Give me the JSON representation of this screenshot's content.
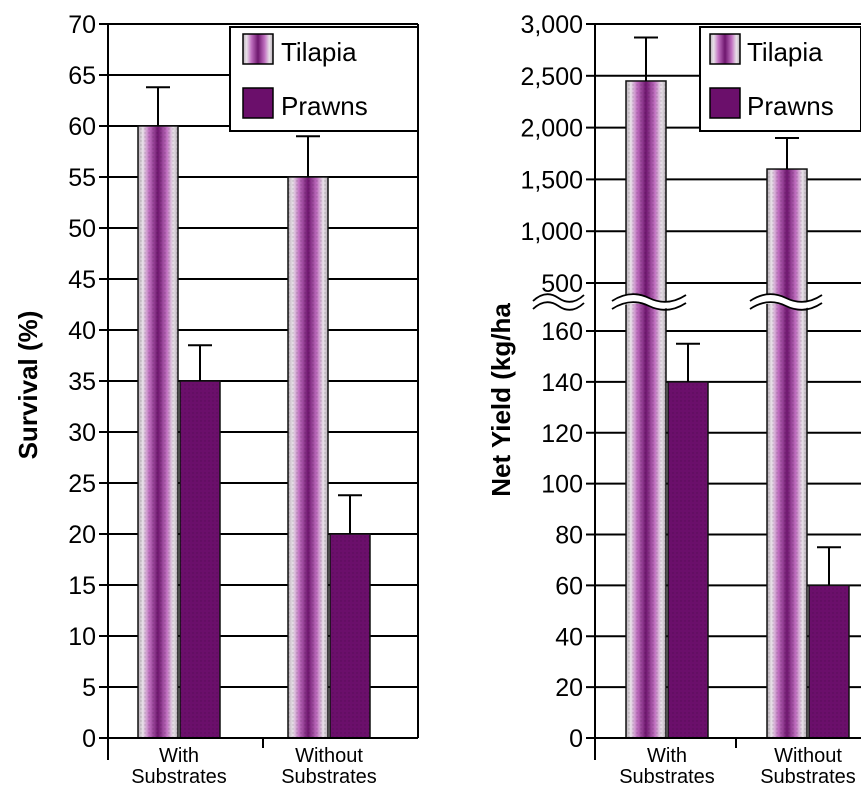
{
  "chart_data": [
    {
      "type": "bar",
      "categories": [
        "With Substrates",
        "Without Substrates"
      ],
      "category_lines": [
        [
          "With",
          "Substrates"
        ],
        [
          "Without",
          "Substrates"
        ]
      ],
      "series": [
        {
          "name": "Tilapia",
          "values": [
            60,
            55
          ],
          "errors": [
            3.8,
            4
          ]
        },
        {
          "name": "Prawns",
          "values": [
            35,
            20
          ],
          "errors": [
            3.5,
            3.8
          ]
        }
      ],
      "ylabel": "Survival (%)",
      "ylim": [
        0,
        70
      ],
      "yticks": [
        "0",
        "5",
        "10",
        "15",
        "20",
        "25",
        "30",
        "35",
        "40",
        "45",
        "50",
        "55",
        "60",
        "65",
        "70"
      ],
      "grid": true,
      "legend": "top-right",
      "colors": {
        "tilapia": "#8e2d8e",
        "prawns": "#6b0f6b"
      }
    },
    {
      "type": "bar",
      "categories": [
        "With Substrates",
        "Without Substrates"
      ],
      "category_lines": [
        [
          "With",
          "Substrates"
        ],
        [
          "Without",
          "Substrates"
        ]
      ],
      "series": [
        {
          "name": "Tilapia",
          "values": [
            2450,
            1600
          ],
          "errors": [
            420,
            300
          ]
        },
        {
          "name": "Prawns",
          "values": [
            140,
            60
          ],
          "errors": [
            15,
            15
          ]
        }
      ],
      "ylabel": "Net Yield (kg/ha",
      "axis_break": true,
      "ylim_lower": [
        0,
        160
      ],
      "ylim_upper": [
        500,
        3000
      ],
      "yticks_lower": [
        "0",
        "20",
        "40",
        "60",
        "80",
        "100",
        "120",
        "140",
        "160"
      ],
      "yticks_upper": [
        "500",
        "1,000",
        "1,500",
        "2,000",
        "2,500",
        "3,000"
      ],
      "grid": true,
      "legend": "top-right",
      "colors": {
        "tilapia": "#8e2d8e",
        "prawns": "#6b0f6b"
      }
    }
  ]
}
